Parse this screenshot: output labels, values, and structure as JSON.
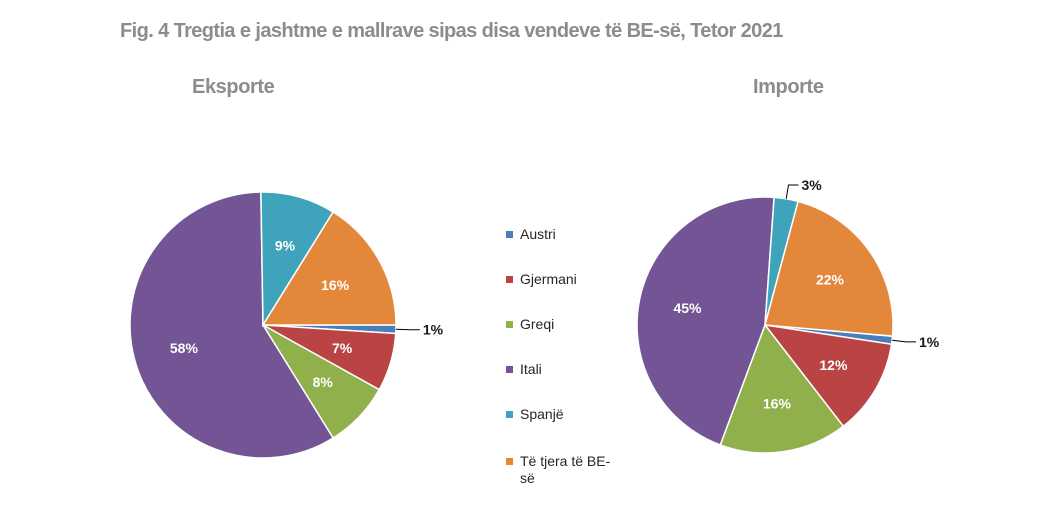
{
  "figure_title": "Fig. 4 Tregtia e jashtme  e mallrave sipas disa vendeve  të BE-së, Tetor 2021",
  "chart_data": [
    {
      "type": "pie",
      "title": "Eksporte",
      "categories": [
        "Austri",
        "Gjermani",
        "Greqi",
        "Itali",
        "Spanjë",
        "Të tjera të BE-së"
      ],
      "values": [
        1,
        7,
        8,
        58,
        9,
        16
      ],
      "labels": [
        "1%",
        "7%",
        "8%",
        "58%",
        "9%",
        "16%"
      ],
      "legend_position": "center"
    },
    {
      "type": "pie",
      "title": "Importe",
      "categories": [
        "Austri",
        "Gjermani",
        "Greqi",
        "Itali",
        "Spanjë",
        "Të tjera të BE-së"
      ],
      "values": [
        1,
        12,
        16,
        45,
        3,
        22
      ],
      "labels": [
        "1%",
        "12%",
        "16%",
        "45%",
        "3%",
        "22%"
      ],
      "legend_position": "center"
    }
  ],
  "legend": {
    "items": [
      {
        "label": "Austri",
        "color": "#4a7ebb"
      },
      {
        "label": "Gjermani",
        "color": "#b94443"
      },
      {
        "label": "Greqi",
        "color": "#8fb04b"
      },
      {
        "label": "Itali",
        "color": "#735595"
      },
      {
        "label": "Spanjë",
        "color": "#40a3bc"
      },
      {
        "label": "Të tjera të BE-\nsë",
        "color": "#e3873a"
      }
    ]
  }
}
